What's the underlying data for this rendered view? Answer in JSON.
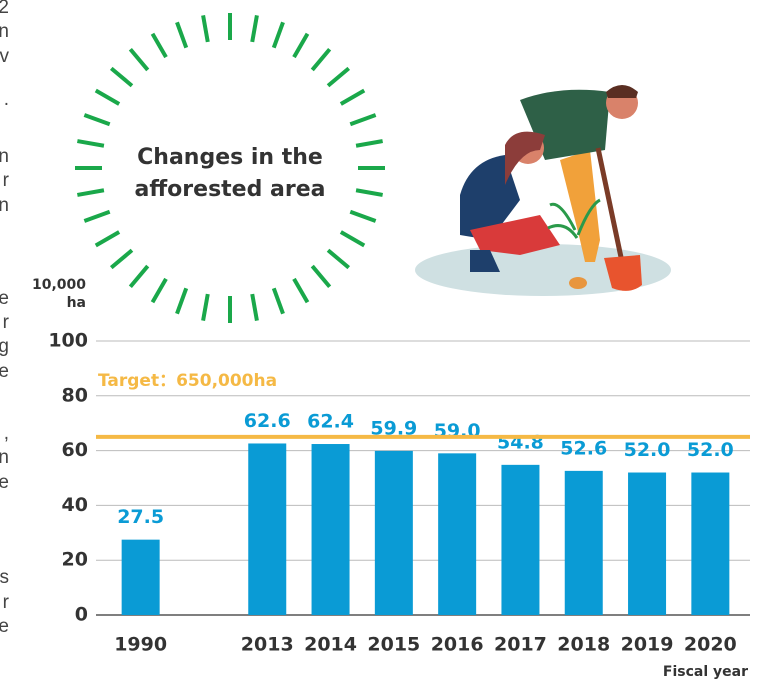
{
  "side_text": [
    "2",
    "n",
    "v",
    ".",
    "n",
    "r",
    "n",
    "e",
    "r",
    "g",
    "e",
    ",",
    "n",
    "e",
    "s",
    "r",
    "e"
  ],
  "chart_data": {
    "type": "bar",
    "title": [
      "Changes in the",
      "afforested area"
    ],
    "y_unit": [
      "10,000",
      "ha"
    ],
    "x_label": "Fiscal year",
    "categories": [
      "1990",
      null,
      "2013",
      "2014",
      "2015",
      "2016",
      "2017",
      "2018",
      "2019",
      "2020"
    ],
    "values": [
      27.5,
      null,
      62.6,
      62.4,
      59.9,
      59.0,
      54.8,
      52.6,
      52.0,
      52.0
    ],
    "value_labels": [
      "27.5",
      null,
      "62.6",
      "62.4",
      "59.9",
      "59.0",
      "54.8",
      "52.6",
      "52.0",
      "52.0"
    ],
    "color": "#0a9bd5",
    "ylim": [
      0,
      100
    ],
    "yticks": [
      0,
      20,
      40,
      60,
      80,
      100
    ],
    "grid": true,
    "target": {
      "value": 65,
      "label": "Target：650,000ha",
      "color": "#f5b945"
    }
  }
}
